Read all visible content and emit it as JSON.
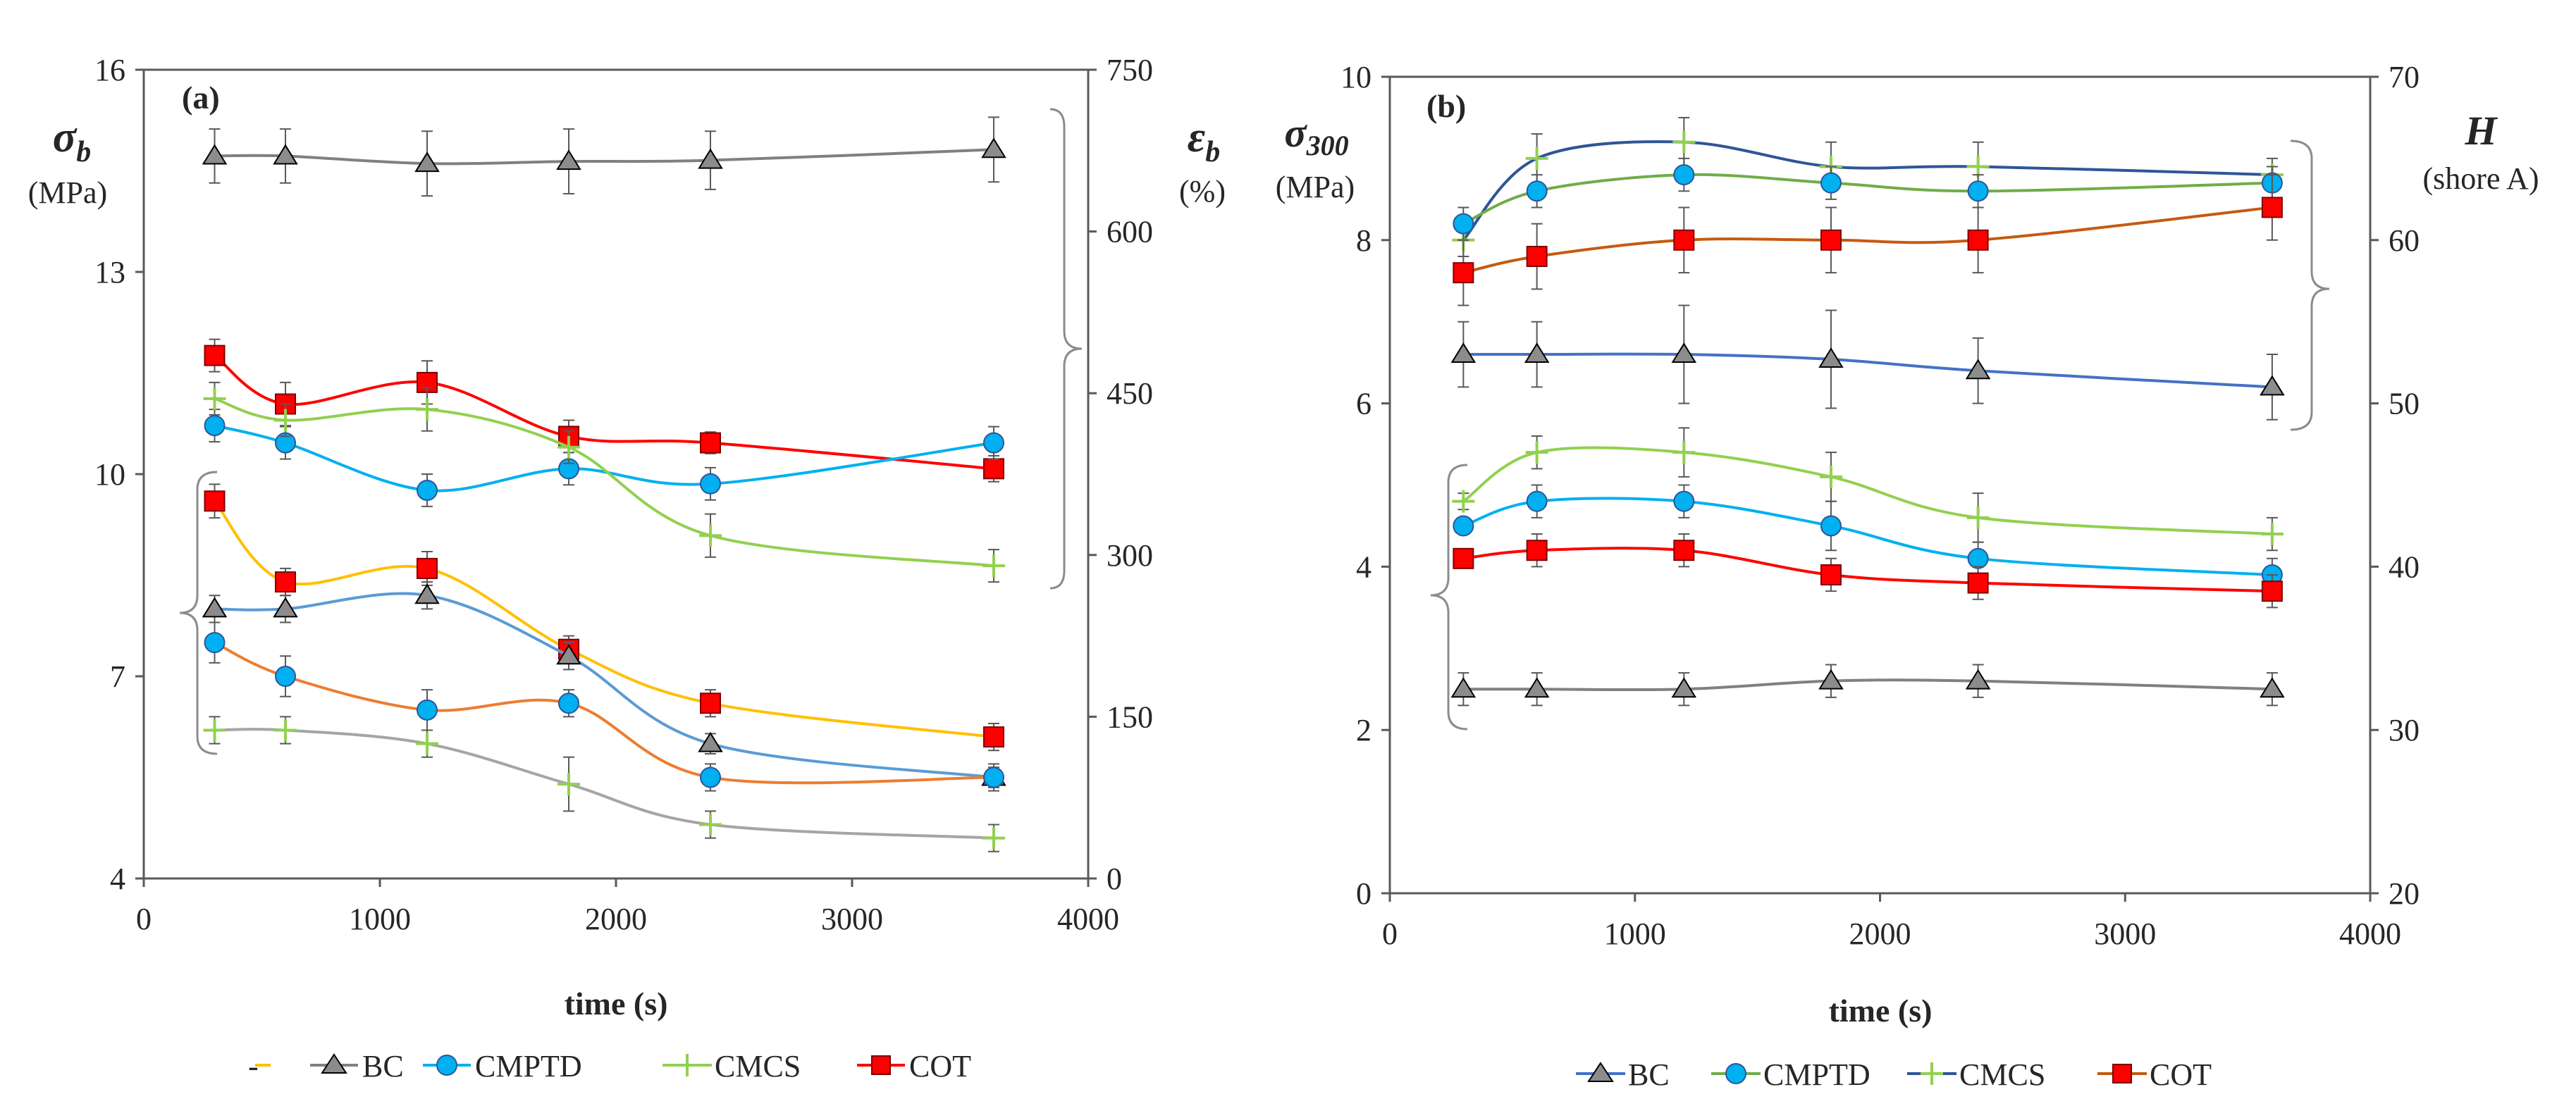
{
  "chart_data": [
    {
      "type": "line",
      "panel_label": "(a)",
      "xlabel": "time (s)",
      "xlim": [
        0,
        4000
      ],
      "xticks": [
        0,
        1000,
        2000,
        3000,
        4000
      ],
      "left_axis": {
        "symbol": "σ",
        "subscript": "b",
        "unit": "(MPa)",
        "ylim": [
          4,
          16
        ],
        "ticks": [
          4,
          7,
          10,
          13,
          16
        ]
      },
      "right_axis": {
        "symbol": "ε",
        "subscript": "b",
        "unit": "(%)",
        "ylim": [
          0,
          750
        ],
        "ticks": [
          0,
          150,
          300,
          450,
          600,
          750
        ]
      },
      "x": [
        300,
        600,
        1200,
        1800,
        2400,
        3600
      ],
      "series_left": [
        {
          "name": "COT",
          "color": "#c00000",
          "marker": "square",
          "values": [
            9.6,
            8.4,
            8.6,
            7.4,
            6.6,
            6.1
          ],
          "err": [
            0.25,
            0.2,
            0.25,
            0.2,
            0.2,
            0.2
          ]
        },
        {
          "name": "BC",
          "color": "#808080",
          "marker": "triangle",
          "values": [
            8.0,
            8.0,
            8.2,
            7.3,
            6.0,
            5.5
          ],
          "err": [
            0.2,
            0.2,
            0.2,
            0.2,
            0.15,
            0.15
          ]
        },
        {
          "name": "CMPTD",
          "color": "#00b0f0",
          "marker": "circle",
          "values": [
            7.5,
            7.0,
            6.5,
            6.6,
            5.5,
            5.5
          ],
          "err": [
            0.3,
            0.3,
            0.3,
            0.2,
            0.2,
            0.2
          ]
        },
        {
          "name": "CMCS",
          "color": "#92d050",
          "marker": "plus",
          "values": [
            6.2,
            6.2,
            6.0,
            5.4,
            4.8,
            4.6
          ],
          "err": [
            0.2,
            0.2,
            0.2,
            0.4,
            0.2,
            0.2
          ]
        }
      ],
      "series_right": [
        {
          "name": "BC",
          "color": "#808080",
          "marker": "triangle",
          "values": [
            670,
            670,
            663,
            665,
            666,
            676
          ],
          "err": [
            25,
            25,
            30,
            30,
            27,
            30
          ]
        },
        {
          "name": "COT",
          "color": "#ff0000",
          "marker": "square",
          "values": [
            485,
            440,
            460,
            410,
            404,
            380
          ],
          "err": [
            15,
            20,
            20,
            15,
            10,
            12
          ]
        },
        {
          "name": "CMPTD",
          "color": "#00b0f0",
          "marker": "circle",
          "values": [
            420,
            404,
            360,
            380,
            366,
            404
          ],
          "err": [
            15,
            15,
            15,
            15,
            15,
            15
          ]
        },
        {
          "name": "CMCS",
          "color": "#92d050",
          "marker": "plus",
          "values": [
            445,
            425,
            435,
            400,
            318,
            290
          ],
          "err": [
            15,
            15,
            20,
            15,
            20,
            15
          ]
        }
      ],
      "legend": [
        "-",
        "BC",
        "CMPTD",
        "CMCS",
        "COT"
      ]
    },
    {
      "type": "line",
      "panel_label": "(b)",
      "xlabel": "time (s)",
      "xlim": [
        0,
        4000
      ],
      "xticks": [
        0,
        1000,
        2000,
        3000,
        4000
      ],
      "left_axis": {
        "symbol": "σ",
        "subscript": "300",
        "unit": "(MPa)",
        "ylim": [
          0,
          10
        ],
        "ticks": [
          0,
          2,
          4,
          6,
          8,
          10
        ]
      },
      "right_axis": {
        "symbol": "H",
        "subscript": "",
        "unit": "(shore A)",
        "ylim": [
          20,
          70
        ],
        "ticks": [
          20,
          30,
          40,
          50,
          60,
          70
        ]
      },
      "x": [
        300,
        600,
        1200,
        1800,
        2400,
        3600
      ],
      "series_left": [
        {
          "name": "CMCS",
          "color": "#92d050",
          "marker": "plus",
          "values": [
            4.8,
            5.4,
            5.4,
            5.1,
            4.6,
            4.4
          ],
          "err": [
            0.1,
            0.2,
            0.3,
            0.3,
            0.3,
            0.2
          ]
        },
        {
          "name": "CMPTD",
          "color": "#00b0f0",
          "marker": "circle",
          "values": [
            4.5,
            4.8,
            4.8,
            4.5,
            4.1,
            3.9
          ],
          "err": [
            0.1,
            0.2,
            0.2,
            0.3,
            0.2,
            0.2
          ]
        },
        {
          "name": "COT",
          "color": "#ff0000",
          "marker": "square",
          "values": [
            4.1,
            4.2,
            4.2,
            3.9,
            3.8,
            3.7
          ],
          "err": [
            0.1,
            0.2,
            0.2,
            0.2,
            0.2,
            0.2
          ]
        },
        {
          "name": "BC",
          "color": "#808080",
          "marker": "triangle",
          "values": [
            2.5,
            2.5,
            2.5,
            2.6,
            2.6,
            2.5
          ],
          "err": [
            0.2,
            0.2,
            0.2,
            0.2,
            0.2,
            0.2
          ]
        }
      ],
      "series_right": [
        {
          "name": "CMCS",
          "color": "#2f5597",
          "marker": "plus",
          "values": [
            60,
            65,
            66,
            64.5,
            64.5,
            64
          ],
          "err": [
            1,
            1.5,
            1.5,
            1.5,
            1.5,
            1
          ]
        },
        {
          "name": "CMPTD",
          "color": "#70ad47",
          "marker": "circle",
          "values": [
            61,
            63,
            64,
            63.5,
            63,
            63.5
          ],
          "err": [
            1,
            1,
            1,
            1,
            1,
            1
          ]
        },
        {
          "name": "COT",
          "color": "#c55a11",
          "marker": "square",
          "values": [
            58,
            59,
            60,
            60,
            60,
            62
          ],
          "err": [
            2,
            2,
            2,
            2,
            2,
            2
          ]
        },
        {
          "name": "BC",
          "color": "#4472c4",
          "marker": "triangle",
          "values": [
            53,
            53,
            53,
            52.7,
            52,
            51
          ],
          "err": [
            2,
            2,
            3,
            3,
            2,
            2
          ]
        }
      ],
      "legend": [
        "BC",
        "CMPTD",
        "CMCS",
        "COT"
      ]
    }
  ]
}
